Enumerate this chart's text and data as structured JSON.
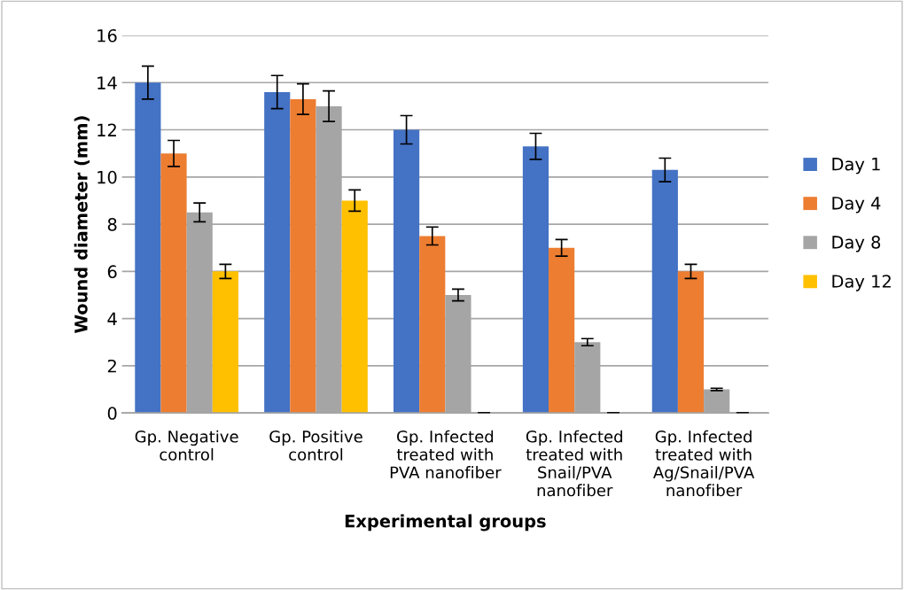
{
  "chart_data": {
    "type": "bar",
    "xlabel": "Experimental groups",
    "ylabel": "Wound diameter (mm)",
    "categories": [
      "Gp. Negative\ncontrol",
      "Gp. Positive\ncontrol",
      "Gp. Infected\ntreated with\nPVA nanofiber",
      "Gp. Infected\ntreated with\nSnail/PVA\nnanofiber",
      "Gp. Infected\ntreated with\nAg/Snail/PVA\nnanofiber"
    ],
    "series": [
      {
        "name": "Day 1",
        "color": "#4472c4",
        "values": [
          14,
          13.6,
          12,
          11.3,
          10.3
        ],
        "errors": [
          0.7,
          0.7,
          0.6,
          0.55,
          0.5
        ]
      },
      {
        "name": "Day 4",
        "color": "#ed7d31",
        "values": [
          11,
          13.3,
          7.5,
          7,
          6
        ],
        "errors": [
          0.55,
          0.65,
          0.38,
          0.35,
          0.3
        ]
      },
      {
        "name": "Day 8",
        "color": "#a5a5a5",
        "values": [
          8.5,
          13,
          5,
          3,
          1
        ],
        "errors": [
          0.4,
          0.65,
          0.25,
          0.15,
          0.05
        ]
      },
      {
        "name": "Day 12",
        "color": "#ffc000",
        "values": [
          6,
          9,
          0,
          0,
          0
        ],
        "errors": [
          0.3,
          0.45,
          0,
          0,
          0
        ]
      }
    ],
    "ylim": [
      0,
      16
    ],
    "yticks": [
      0,
      2,
      4,
      6,
      8,
      10,
      12,
      14,
      16
    ],
    "grid": "y",
    "legend": "right"
  }
}
